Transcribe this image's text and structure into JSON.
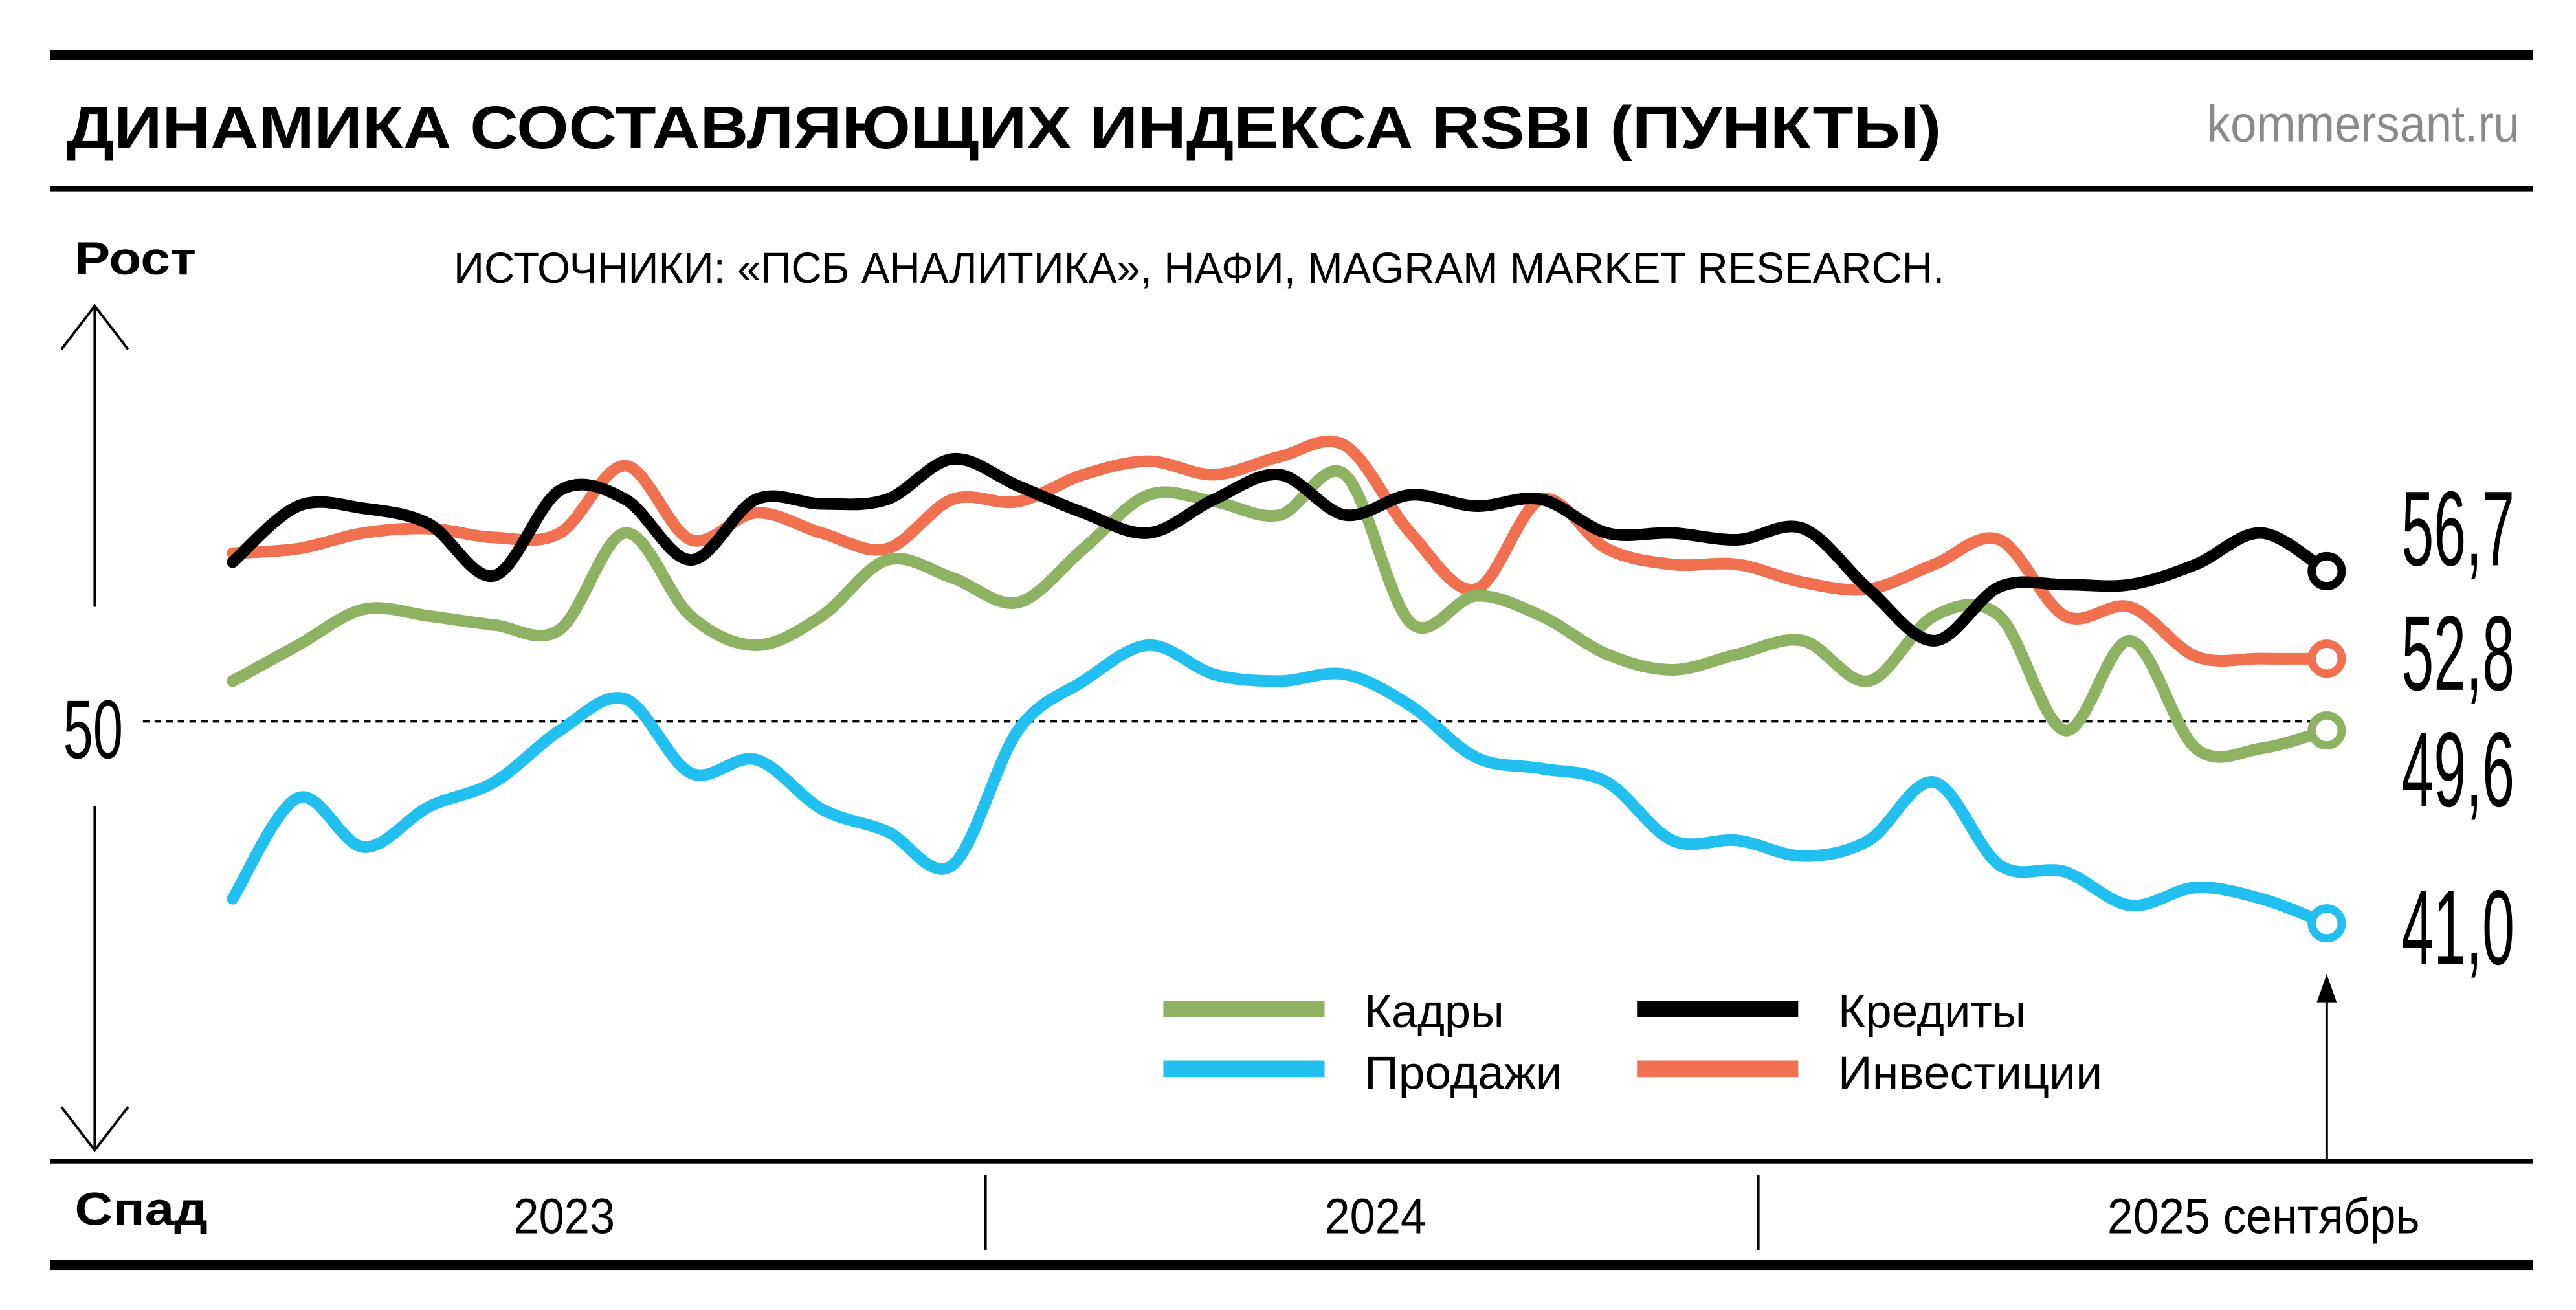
{
  "header": {
    "title": "ДИНАМИКА СОСТАВЛЯЮЩИХ ИНДЕКСА RSBI (ПУНКТЫ)",
    "site": "kommersant.ru",
    "source": "ИСТОЧНИКИ: «ПСБ АНАЛИТИКА», НАФИ, MAGRAM MARKET RESEARCH."
  },
  "axis": {
    "up_label": "Рост",
    "down_label": "Спад",
    "reference_label": "50",
    "years": [
      "2023",
      "2024",
      "2025 сентябрь"
    ]
  },
  "chart_data": {
    "type": "line",
    "title": "ДИНАМИКА СОСТАВЛЯЮЩИХ ИНДЕКСА RSBI (ПУНКТЫ)",
    "x_range": [
      "2023-01",
      "2025-09"
    ],
    "x_frequency": "monthly",
    "x_tick_labels": [
      "2023",
      "2024",
      "2025 сентябрь"
    ],
    "reference_line": 50,
    "ylim": [
      34,
      70
    ],
    "grid": false,
    "legend_position": "bottom-right",
    "colors": {
      "Кадры": "#8db262",
      "Продажи": "#22c0f0",
      "Кредиты": "#000000",
      "Инвестиции": "#f07050"
    },
    "series": [
      {
        "name": "Кадры",
        "end_label": "49,6",
        "values": [
          51.8,
          53.4,
          55.0,
          54.7,
          54.3,
          54.1,
          58.4,
          54.7,
          53.4,
          54.7,
          57.2,
          56.4,
          55.3,
          57.7,
          60.1,
          59.8,
          59.2,
          61.0,
          54.4,
          55.6,
          54.7,
          53.0,
          52.3,
          53.0,
          53.6,
          51.8,
          54.7,
          54.7,
          49.6,
          53.6,
          48.8,
          48.8,
          49.6
        ]
      },
      {
        "name": "Продажи",
        "end_label": "41,0",
        "values": [
          42.1,
          46.6,
          44.4,
          46.2,
          47.3,
          49.6,
          51.0,
          47.7,
          48.3,
          46.1,
          45.1,
          43.6,
          49.6,
          51.8,
          53.4,
          52.1,
          51.8,
          52.1,
          50.7,
          48.4,
          47.9,
          47.3,
          44.7,
          44.7,
          44.0,
          44.7,
          47.3,
          43.6,
          43.3,
          41.8,
          42.6,
          42.1,
          41.0
        ]
      },
      {
        "name": "Кредиты",
        "end_label": "56,7",
        "values": [
          57.1,
          59.6,
          59.5,
          58.8,
          56.5,
          60.3,
          59.9,
          57.2,
          59.9,
          59.7,
          59.9,
          61.7,
          60.5,
          59.3,
          58.4,
          59.9,
          61.0,
          59.2,
          60.1,
          59.6,
          59.9,
          58.4,
          58.4,
          58.1,
          58.6,
          55.9,
          53.6,
          56.0,
          56.1,
          56.1,
          57.0,
          58.4,
          56.7
        ]
      },
      {
        "name": "Инвестиции",
        "end_label": "52,8",
        "values": [
          57.5,
          57.7,
          58.4,
          58.6,
          58.2,
          58.4,
          61.4,
          58.1,
          59.3,
          58.4,
          57.7,
          59.9,
          59.8,
          61.0,
          61.6,
          61.0,
          61.8,
          62.3,
          58.4,
          55.9,
          59.9,
          57.7,
          57.0,
          57.0,
          56.2,
          55.9,
          57.0,
          58.1,
          54.7,
          55.1,
          52.9,
          52.8,
          52.8
        ]
      }
    ]
  }
}
